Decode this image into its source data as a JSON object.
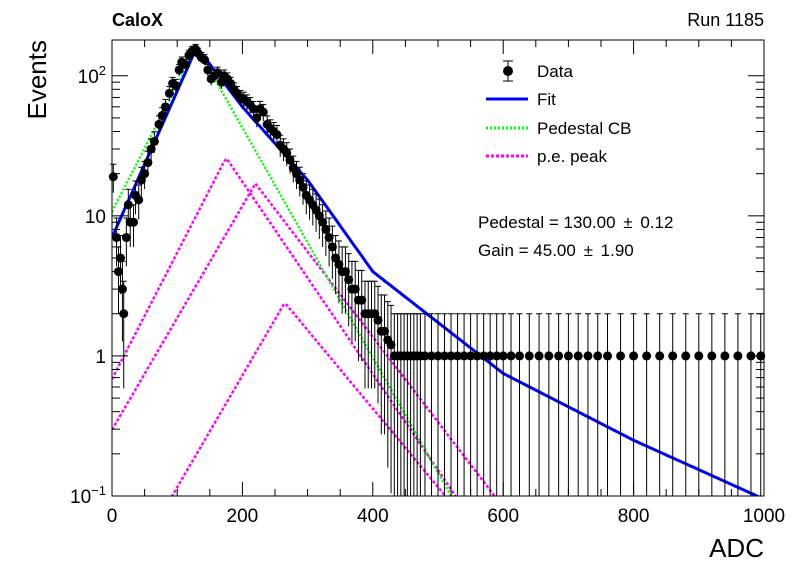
{
  "header": {
    "left": "CaloX",
    "right": "Run 1185"
  },
  "colors": {
    "data": "#000000",
    "fit": "#0000ff",
    "pedestal": "#00ff00",
    "pe_peak": "#ff00ff",
    "frame": "#000000"
  },
  "chart_data": {
    "type": "scatter",
    "xlabel": "ADC",
    "ylabel": "Events",
    "xlim": [
      0,
      1000
    ],
    "ylim": [
      0.1,
      180
    ],
    "yscale": "log",
    "x_ticks": [
      "0",
      "200",
      "400",
      "600",
      "800",
      "1000"
    ],
    "y_ticks": [
      {
        "value": 0.1,
        "base": "10",
        "exp": "−1"
      },
      {
        "value": 1,
        "base": "1",
        "exp": ""
      },
      {
        "value": 10,
        "base": "10",
        "exp": ""
      },
      {
        "value": 100,
        "base": "10",
        "exp": "2"
      }
    ],
    "grid": false,
    "legend_position": "top-right",
    "legend": [
      {
        "label": "Data",
        "kind": "marker"
      },
      {
        "label": "Fit",
        "kind": "fit"
      },
      {
        "label": "Pedestal CB",
        "kind": "pedestal"
      },
      {
        "label": "p.e. peak",
        "kind": "pe"
      }
    ],
    "stats": [
      {
        "label": "Pedestal = 130.00",
        "pm": "±",
        "err": "0.12"
      },
      {
        "label": "Gain = 45.00",
        "pm": "±",
        "err": "1.90"
      }
    ],
    "model": {
      "pedestal": 130,
      "gain": 45,
      "pedestal_peak": 160,
      "pedestal_left_slope": 0.0208,
      "pedestal_right_slope": 0.0189,
      "pe_peaks": [
        {
          "mean": 175,
          "height": 26,
          "left_slope": 0.0208,
          "right_slope": 0.0158
        },
        {
          "mean": 220,
          "height": 17,
          "left_slope": 0.0184,
          "right_slope": 0.014
        },
        {
          "mean": 265,
          "height": 2.4,
          "left_slope": 0.0184,
          "right_slope": 0.0129
        }
      ],
      "fit_points": [
        [
          0,
          7
        ],
        [
          130,
          160
        ],
        [
          200,
          60
        ],
        [
          300,
          18
        ],
        [
          400,
          4
        ],
        [
          600,
          0.75
        ],
        [
          800,
          0.25
        ],
        [
          1000,
          0.095
        ]
      ]
    },
    "data_points": [
      [
        2,
        19
      ],
      [
        7,
        7
      ],
      [
        10,
        4
      ],
      [
        13,
        5
      ],
      [
        16,
        3
      ],
      [
        18,
        2
      ],
      [
        22,
        7
      ],
      [
        25,
        12
      ],
      [
        28,
        9
      ],
      [
        33,
        9
      ],
      [
        36,
        14
      ],
      [
        41,
        13
      ],
      [
        45,
        18
      ],
      [
        50,
        20
      ],
      [
        55,
        24
      ],
      [
        60,
        30
      ],
      [
        65,
        34
      ],
      [
        72,
        45
      ],
      [
        77,
        52
      ],
      [
        82,
        60
      ],
      [
        88,
        75
      ],
      [
        93,
        88
      ],
      [
        98,
        85
      ],
      [
        103,
        110
      ],
      [
        107,
        125
      ],
      [
        113,
        120
      ],
      [
        118,
        140
      ],
      [
        123,
        150
      ],
      [
        128,
        155
      ],
      [
        132,
        145
      ],
      [
        137,
        135
      ],
      [
        142,
        130
      ],
      [
        147,
        110
      ],
      [
        152,
        95
      ],
      [
        157,
        100
      ],
      [
        162,
        105
      ],
      [
        168,
        90
      ],
      [
        172,
        100
      ],
      [
        177,
        95
      ],
      [
        182,
        88
      ],
      [
        187,
        80
      ],
      [
        192,
        75
      ],
      [
        197,
        70
      ],
      [
        202,
        68
      ],
      [
        207,
        65
      ],
      [
        212,
        62
      ],
      [
        217,
        58
      ],
      [
        222,
        50
      ],
      [
        227,
        58
      ],
      [
        232,
        55
      ],
      [
        238,
        45
      ],
      [
        243,
        42
      ],
      [
        248,
        40
      ],
      [
        253,
        38
      ],
      [
        258,
        32
      ],
      [
        263,
        30
      ],
      [
        268,
        28
      ],
      [
        273,
        25
      ],
      [
        278,
        22
      ],
      [
        283,
        20
      ],
      [
        288,
        18
      ],
      [
        293,
        16
      ],
      [
        298,
        14
      ],
      [
        303,
        13
      ],
      [
        308,
        12
      ],
      [
        313,
        11
      ],
      [
        318,
        10
      ],
      [
        323,
        9
      ],
      [
        328,
        8
      ],
      [
        333,
        7
      ],
      [
        338,
        6
      ],
      [
        343,
        5
      ],
      [
        348,
        4.5
      ],
      [
        353,
        4
      ],
      [
        358,
        4
      ],
      [
        363,
        3.5
      ],
      [
        368,
        3
      ],
      [
        373,
        3
      ],
      [
        378,
        2.5
      ],
      [
        383,
        2.5
      ],
      [
        388,
        2
      ],
      [
        393,
        2
      ],
      [
        398,
        2
      ],
      [
        403,
        2
      ],
      [
        408,
        1.8
      ],
      [
        413,
        1.5
      ],
      [
        418,
        1.5
      ],
      [
        423,
        1.3
      ],
      [
        428,
        1.2
      ],
      [
        433,
        1.0
      ],
      [
        438,
        1.0
      ],
      [
        443,
        1.0
      ],
      [
        448,
        1.0
      ],
      [
        453,
        1.0
      ],
      [
        458,
        1.0
      ],
      [
        463,
        1.0
      ],
      [
        468,
        1.0
      ],
      [
        473,
        1.0
      ],
      [
        480,
        1.0
      ],
      [
        490,
        1.0
      ],
      [
        500,
        1.0
      ],
      [
        510,
        1.0
      ],
      [
        520,
        1.0
      ],
      [
        530,
        1.0
      ],
      [
        540,
        1.0
      ],
      [
        550,
        1.0
      ],
      [
        560,
        1.0
      ],
      [
        570,
        1.0
      ],
      [
        580,
        1.0
      ],
      [
        590,
        1.0
      ],
      [
        600,
        1.0
      ],
      [
        612,
        1.0
      ],
      [
        625,
        1.0
      ],
      [
        640,
        1.0
      ],
      [
        655,
        1.0
      ],
      [
        670,
        1.0
      ],
      [
        685,
        1.0
      ],
      [
        700,
        1.0
      ],
      [
        715,
        1.0
      ],
      [
        730,
        1.0
      ],
      [
        745,
        1.0
      ],
      [
        760,
        1.0
      ],
      [
        780,
        1.0
      ],
      [
        800,
        1.0
      ],
      [
        820,
        1.0
      ],
      [
        840,
        1.0
      ],
      [
        860,
        1.0
      ],
      [
        880,
        1.0
      ],
      [
        900,
        1.0
      ],
      [
        920,
        1.0
      ],
      [
        940,
        1.0
      ],
      [
        960,
        1.0
      ],
      [
        980,
        1.0
      ],
      [
        995,
        1.0
      ]
    ]
  }
}
